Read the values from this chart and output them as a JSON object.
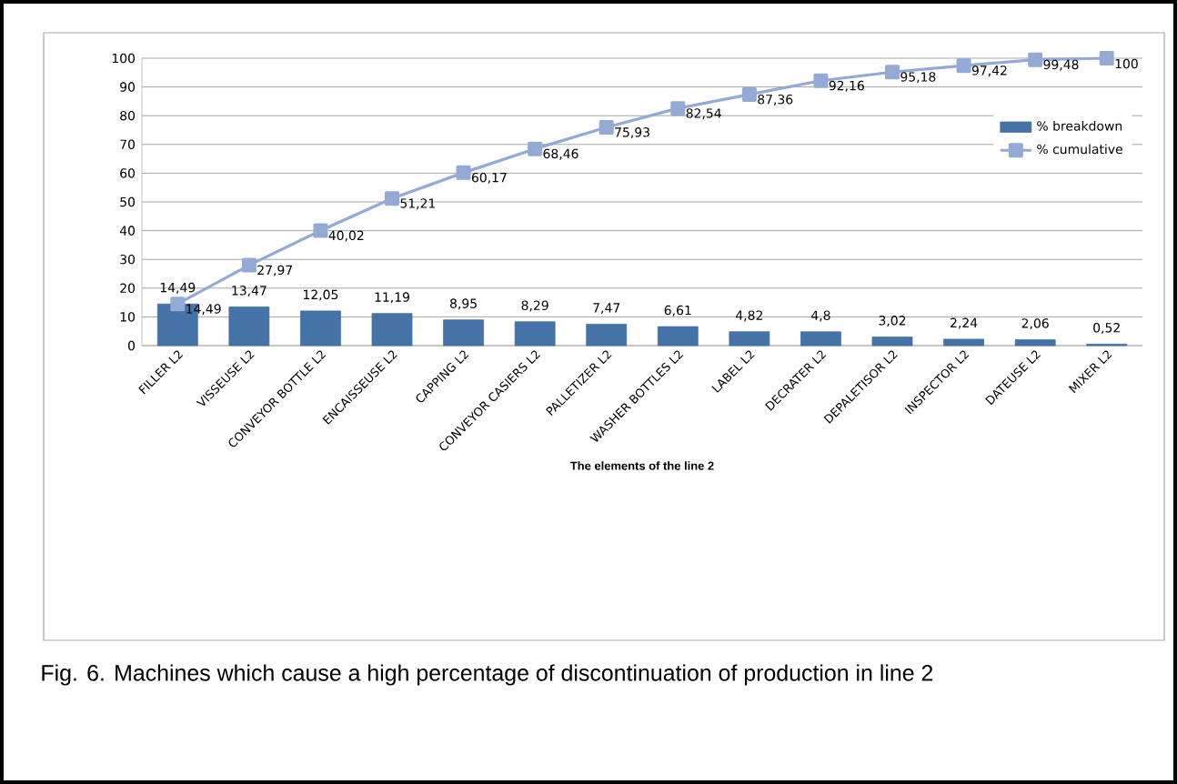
{
  "chart_data": {
    "type": "bar",
    "xlabel": "The elements of the line 2",
    "categories": [
      "FILLER L2",
      "VISSEUSE L2",
      "CONVEYOR BOTTLE L2",
      "ENCAISSEUSE L2",
      "CAPPING L2",
      "CONVEYOR CASIERS L2",
      "PALLETIZER L2",
      "WASHER BOTTLES L2",
      "LABEL L2",
      "DECRATER L2",
      "DEPALETISOR L2",
      "INSPECTOR L2",
      "DATEUSE L2",
      "MIXER L2"
    ],
    "series": [
      {
        "name": "% breakdown",
        "color": "#4572a7",
        "values": [
          14.49,
          13.47,
          12.05,
          11.19,
          8.95,
          8.29,
          7.47,
          6.61,
          4.82,
          4.8,
          3.02,
          2.24,
          2.06,
          0.52
        ],
        "value_labels": [
          "14,49",
          "13,47",
          "12,05",
          "11,19",
          "8,95",
          "8,29",
          "7,47",
          "6,61",
          "4,82",
          "4,8",
          "3,02",
          "2,24",
          "2,06",
          "0,52"
        ]
      },
      {
        "name": "% cumulative",
        "type": "line",
        "color": "#93aad4",
        "marker": "square",
        "values": [
          14.49,
          27.97,
          40.02,
          51.21,
          60.17,
          68.46,
          75.93,
          82.54,
          87.36,
          92.16,
          95.18,
          97.42,
          99.48,
          100
        ],
        "value_labels": [
          "14,49",
          "27,97",
          "40,02",
          "51,21",
          "60,17",
          "68,46",
          "75,93",
          "82,54",
          "87,36",
          "92,16",
          "95,18",
          "97,42",
          "99,48",
          "100"
        ]
      }
    ],
    "ylim": [
      0,
      100
    ],
    "yticks": [
      0,
      10,
      20,
      30,
      40,
      50,
      60,
      70,
      80,
      90,
      100
    ],
    "grid": "y",
    "legend": "right",
    "annotations": [
      "Fig. 6. Machines which cause a high percentage of discontinuation of production in line 2"
    ]
  }
}
